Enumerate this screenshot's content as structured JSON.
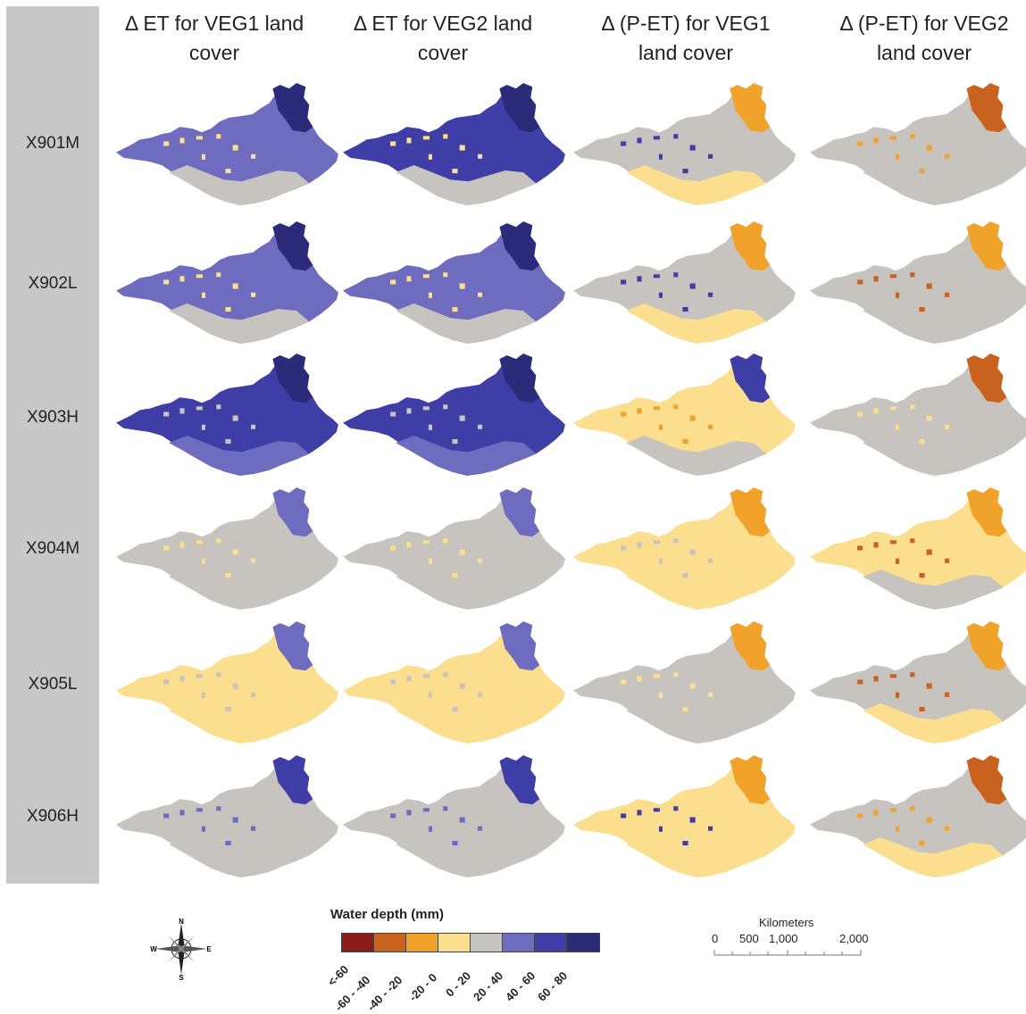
{
  "columns": [
    {
      "line1": "Δ  ET for VEG1 land",
      "line2": "cover"
    },
    {
      "line1": "Δ ET for VEG2 land",
      "line2": "cover"
    },
    {
      "line1": "Δ (P-ET) for VEG1",
      "line2": "land cover"
    },
    {
      "line1": "Δ (P-ET) for VEG2",
      "line2": "land cover"
    }
  ],
  "rows": [
    "X901M",
    "X902L",
    "X903H",
    "X904M",
    "X905L",
    "X906H"
  ],
  "legend": {
    "title": "Water depth (mm)",
    "classes": [
      {
        "label": "<-60",
        "color": "#8b1a1a"
      },
      {
        "label": "-60 - -40",
        "color": "#c8621e"
      },
      {
        "label": "-40 - -20",
        "color": "#f0a22a"
      },
      {
        "label": "-20 - 0",
        "color": "#fbdf8f"
      },
      {
        "label": "0 - 20",
        "color": "#c7c3bf"
      },
      {
        "label": "20 - 40",
        "color": "#6e6cbf"
      },
      {
        "label": "40 - 60",
        "color": "#3f3ea6"
      },
      {
        "label": "60 - 80",
        "color": "#2b2b7a"
      }
    ]
  },
  "scalebar": {
    "title": "Kilometers",
    "labels": [
      "0",
      "500",
      "1,000",
      "2,000"
    ]
  },
  "compass": {
    "n": "N",
    "s": "S",
    "e": "E",
    "w": "W",
    "icon": "compass-rose-icon"
  },
  "maps": [
    [
      {
        "base": "#6e6cbf",
        "south": "#c7c3bf",
        "ne": "#2b2b7a",
        "accent": "#fbdf8f"
      },
      {
        "base": "#3f3ea6",
        "south": "#c7c3bf",
        "ne": "#2b2b7a",
        "accent": "#fbdf8f"
      },
      {
        "base": "#c7c3bf",
        "south": "#fbdf8f",
        "ne": "#f0a22a",
        "accent": "#3f3ea6"
      },
      {
        "base": "#c7c3bf",
        "south": "#c7c3bf",
        "ne": "#c8621e",
        "accent": "#f0a22a"
      }
    ],
    [
      {
        "base": "#6e6cbf",
        "south": "#c7c3bf",
        "ne": "#2b2b7a",
        "accent": "#fbdf8f"
      },
      {
        "base": "#6e6cbf",
        "south": "#c7c3bf",
        "ne": "#2b2b7a",
        "accent": "#fbdf8f"
      },
      {
        "base": "#c7c3bf",
        "south": "#fbdf8f",
        "ne": "#f0a22a",
        "accent": "#3f3ea6"
      },
      {
        "base": "#c7c3bf",
        "south": "#c7c3bf",
        "ne": "#f0a22a",
        "accent": "#c8621e"
      }
    ],
    [
      {
        "base": "#3f3ea6",
        "south": "#6e6cbf",
        "ne": "#2b2b7a",
        "accent": "#c7c3bf"
      },
      {
        "base": "#3f3ea6",
        "south": "#6e6cbf",
        "ne": "#2b2b7a",
        "accent": "#c7c3bf"
      },
      {
        "base": "#fbdf8f",
        "south": "#c7c3bf",
        "ne": "#3f3ea6",
        "accent": "#f0a22a"
      },
      {
        "base": "#c7c3bf",
        "south": "#c7c3bf",
        "ne": "#c8621e",
        "accent": "#fbdf8f"
      }
    ],
    [
      {
        "base": "#c7c3bf",
        "south": "#c7c3bf",
        "ne": "#6e6cbf",
        "accent": "#fbdf8f"
      },
      {
        "base": "#c7c3bf",
        "south": "#c7c3bf",
        "ne": "#6e6cbf",
        "accent": "#fbdf8f"
      },
      {
        "base": "#fbdf8f",
        "south": "#fbdf8f",
        "ne": "#f0a22a",
        "accent": "#c7c3bf"
      },
      {
        "base": "#fbdf8f",
        "south": "#c7c3bf",
        "ne": "#f0a22a",
        "accent": "#c8621e"
      }
    ],
    [
      {
        "base": "#fbdf8f",
        "south": "#fbdf8f",
        "ne": "#6e6cbf",
        "accent": "#c7c3bf"
      },
      {
        "base": "#fbdf8f",
        "south": "#fbdf8f",
        "ne": "#6e6cbf",
        "accent": "#c7c3bf"
      },
      {
        "base": "#c7c3bf",
        "south": "#c7c3bf",
        "ne": "#f0a22a",
        "accent": "#fbdf8f"
      },
      {
        "base": "#c7c3bf",
        "south": "#fbdf8f",
        "ne": "#f0a22a",
        "accent": "#c8621e"
      }
    ],
    [
      {
        "base": "#c7c3bf",
        "south": "#c7c3bf",
        "ne": "#3f3ea6",
        "accent": "#6e6cbf"
      },
      {
        "base": "#c7c3bf",
        "south": "#c7c3bf",
        "ne": "#3f3ea6",
        "accent": "#6e6cbf"
      },
      {
        "base": "#fbdf8f",
        "south": "#fbdf8f",
        "ne": "#f0a22a",
        "accent": "#3f3ea6"
      },
      {
        "base": "#c7c3bf",
        "south": "#fbdf8f",
        "ne": "#c8621e",
        "accent": "#f0a22a"
      }
    ]
  ]
}
